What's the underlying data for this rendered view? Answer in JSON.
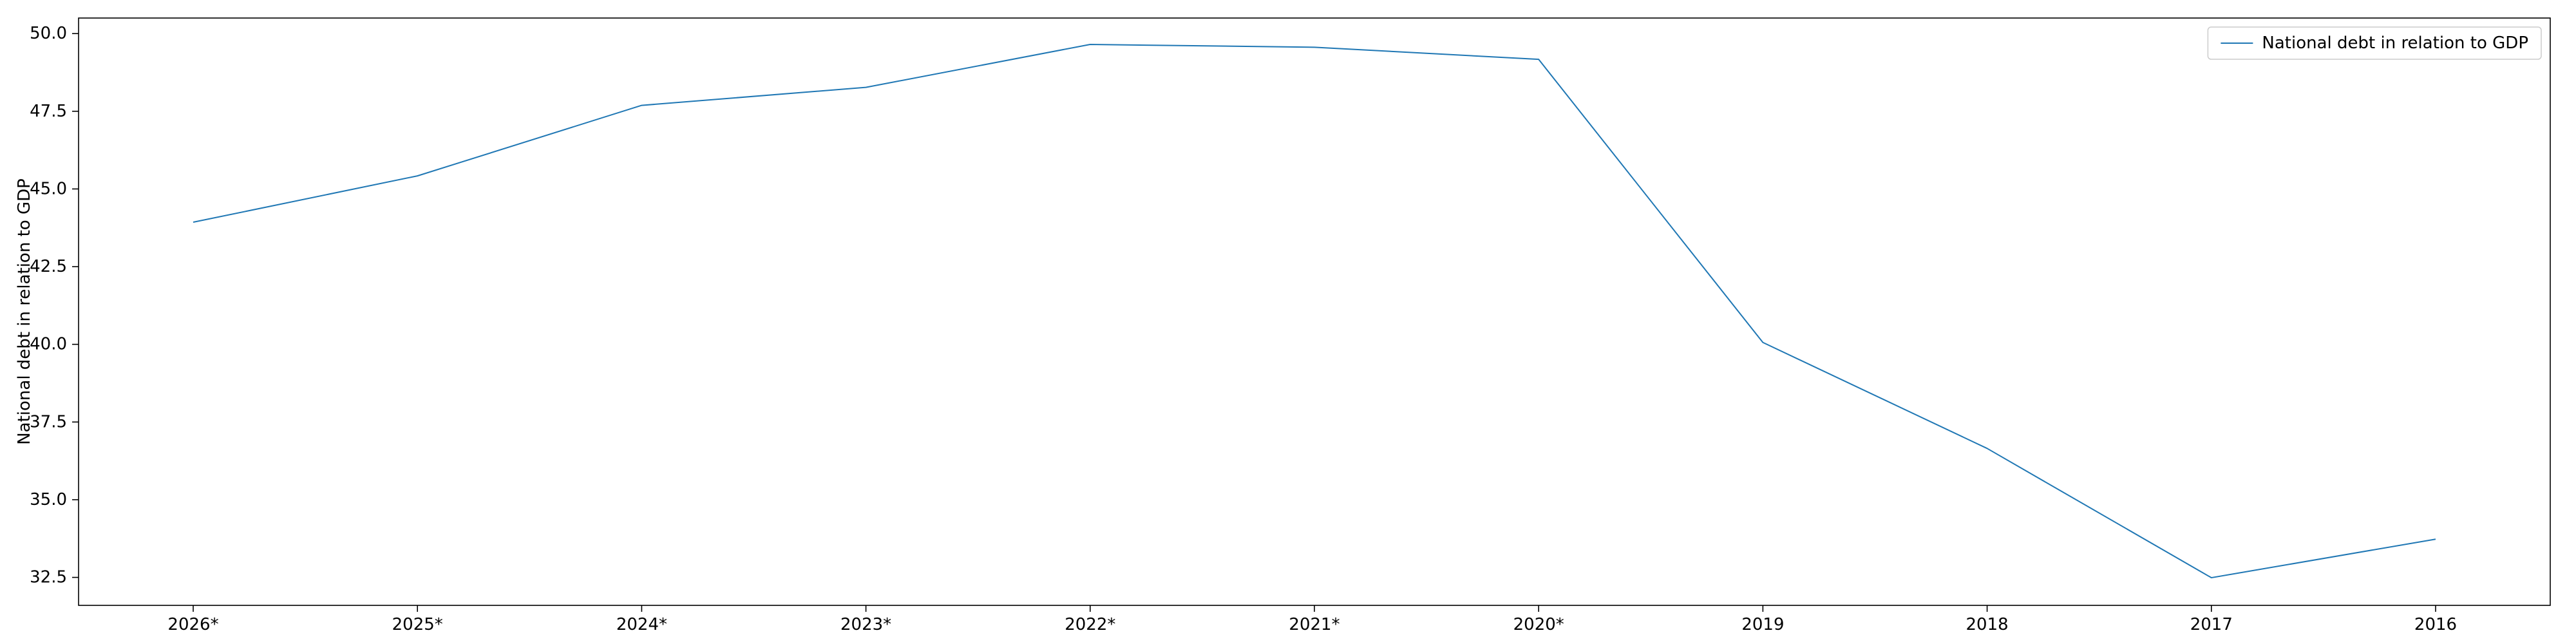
{
  "chart_data": {
    "type": "line",
    "title": "",
    "xlabel": "",
    "ylabel": "National debt in relation to GDP",
    "categories": [
      "2026*",
      "2025*",
      "2024*",
      "2023*",
      "2022*",
      "2021*",
      "2020*",
      "2019",
      "2018",
      "2017",
      "2016"
    ],
    "series": [
      {
        "name": "National debt in relation to GDP",
        "color": "#1f77b4",
        "values": [
          43.93,
          45.42,
          47.69,
          48.27,
          49.65,
          49.56,
          49.17,
          40.06,
          36.65,
          32.49,
          33.73
        ]
      }
    ],
    "ylim": [
      31.6,
      50.5
    ],
    "yticks": [
      32.5,
      35.0,
      37.5,
      40.0,
      42.5,
      45.0,
      47.5,
      50.0
    ],
    "ytick_labels": [
      "32.5",
      "35.0",
      "37.5",
      "40.0",
      "42.5",
      "45.0",
      "47.5",
      "50.0"
    ],
    "grid": false,
    "legend": "top-right"
  }
}
